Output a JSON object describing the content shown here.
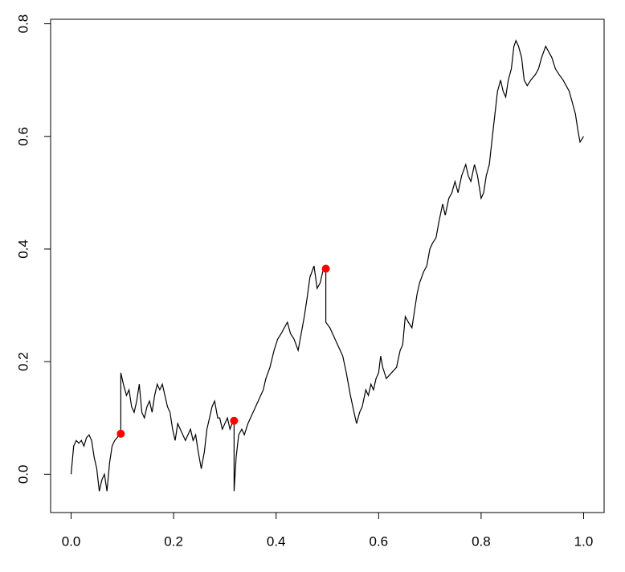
{
  "chart_data": {
    "type": "line",
    "x": [
      0.0,
      0.005,
      0.01,
      0.015,
      0.02,
      0.025,
      0.03,
      0.035,
      0.04,
      0.045,
      0.05,
      0.055,
      0.06,
      0.065,
      0.07,
      0.075,
      0.08,
      0.085,
      0.09,
      0.092,
      0.097,
      0.097,
      0.102,
      0.108,
      0.113,
      0.118,
      0.123,
      0.128,
      0.133,
      0.138,
      0.143,
      0.148,
      0.153,
      0.158,
      0.163,
      0.168,
      0.173,
      0.178,
      0.183,
      0.188,
      0.193,
      0.198,
      0.203,
      0.208,
      0.213,
      0.218,
      0.223,
      0.228,
      0.233,
      0.238,
      0.243,
      0.248,
      0.254,
      0.26,
      0.265,
      0.27,
      0.275,
      0.28,
      0.286,
      0.29,
      0.295,
      0.3,
      0.305,
      0.31,
      0.314,
      0.318,
      0.318,
      0.322,
      0.327,
      0.333,
      0.338,
      0.345,
      0.355,
      0.365,
      0.375,
      0.38,
      0.388,
      0.396,
      0.403,
      0.41,
      0.416,
      0.422,
      0.428,
      0.435,
      0.443,
      0.449,
      0.455,
      0.46,
      0.466,
      0.474,
      0.48,
      0.486,
      0.491,
      0.497,
      0.497,
      0.505,
      0.515,
      0.525,
      0.53,
      0.537,
      0.545,
      0.552,
      0.557,
      0.563,
      0.568,
      0.575,
      0.58,
      0.585,
      0.59,
      0.595,
      0.6,
      0.604,
      0.608,
      0.615,
      0.625,
      0.635,
      0.642,
      0.647,
      0.652,
      0.658,
      0.665,
      0.67,
      0.675,
      0.68,
      0.688,
      0.694,
      0.7,
      0.705,
      0.712,
      0.718,
      0.725,
      0.73,
      0.737,
      0.743,
      0.749,
      0.755,
      0.762,
      0.77,
      0.775,
      0.78,
      0.787,
      0.793,
      0.8,
      0.805,
      0.81,
      0.816,
      0.822,
      0.827,
      0.832,
      0.838,
      0.843,
      0.848,
      0.853,
      0.859,
      0.864,
      0.868,
      0.873,
      0.879,
      0.884,
      0.89,
      0.897,
      0.906,
      0.912,
      0.918,
      0.926,
      0.932,
      0.938,
      0.945,
      0.952,
      0.96,
      0.966,
      0.972,
      0.978,
      0.984,
      0.989,
      0.993,
      1.0
    ],
    "values": [
      0.0,
      0.05,
      0.06,
      0.055,
      0.06,
      0.05,
      0.065,
      0.07,
      0.06,
      0.03,
      0.01,
      -0.03,
      -0.01,
      0.0,
      -0.03,
      0.02,
      0.05,
      0.06,
      0.065,
      0.068,
      0.072,
      0.18,
      0.16,
      0.14,
      0.15,
      0.12,
      0.11,
      0.13,
      0.16,
      0.11,
      0.1,
      0.12,
      0.13,
      0.11,
      0.14,
      0.16,
      0.15,
      0.16,
      0.14,
      0.12,
      0.11,
      0.08,
      0.06,
      0.09,
      0.08,
      0.07,
      0.06,
      0.07,
      0.08,
      0.06,
      0.07,
      0.04,
      0.01,
      0.04,
      0.08,
      0.1,
      0.12,
      0.13,
      0.1,
      0.1,
      0.08,
      0.09,
      0.1,
      0.08,
      0.09,
      0.095,
      -0.03,
      0.03,
      0.07,
      0.08,
      0.07,
      0.09,
      0.11,
      0.13,
      0.15,
      0.17,
      0.19,
      0.22,
      0.24,
      0.25,
      0.26,
      0.27,
      0.25,
      0.24,
      0.22,
      0.25,
      0.28,
      0.31,
      0.35,
      0.37,
      0.33,
      0.34,
      0.36,
      0.365,
      0.27,
      0.26,
      0.24,
      0.22,
      0.21,
      0.18,
      0.14,
      0.11,
      0.09,
      0.11,
      0.12,
      0.15,
      0.14,
      0.16,
      0.15,
      0.17,
      0.18,
      0.21,
      0.19,
      0.17,
      0.18,
      0.19,
      0.22,
      0.23,
      0.28,
      0.27,
      0.26,
      0.29,
      0.32,
      0.34,
      0.36,
      0.37,
      0.4,
      0.41,
      0.42,
      0.45,
      0.48,
      0.46,
      0.49,
      0.5,
      0.52,
      0.5,
      0.53,
      0.55,
      0.53,
      0.52,
      0.55,
      0.53,
      0.49,
      0.5,
      0.53,
      0.55,
      0.6,
      0.64,
      0.68,
      0.7,
      0.68,
      0.67,
      0.7,
      0.72,
      0.76,
      0.77,
      0.76,
      0.74,
      0.7,
      0.69,
      0.7,
      0.71,
      0.72,
      0.74,
      0.76,
      0.75,
      0.74,
      0.72,
      0.71,
      0.7,
      0.69,
      0.68,
      0.66,
      0.64,
      0.61,
      0.59,
      0.6
    ],
    "color": "#000000",
    "markers": {
      "type": "scatter",
      "x": [
        0.097,
        0.318,
        0.497
      ],
      "values": [
        0.072,
        0.095,
        0.365
      ],
      "color": "#ff0000"
    },
    "xlim": [
      -0.04,
      1.04
    ],
    "ylim": [
      -0.068,
      0.808
    ],
    "xticks": [
      {
        "value": 0,
        "label": "0.0"
      },
      0.2,
      0.4,
      0.6,
      0.8,
      {
        "value": 1,
        "label": "1.0"
      }
    ],
    "yticks": [
      {
        "value": 0,
        "label": "0.0"
      },
      0.2,
      0.4,
      0.6,
      0.8
    ]
  }
}
